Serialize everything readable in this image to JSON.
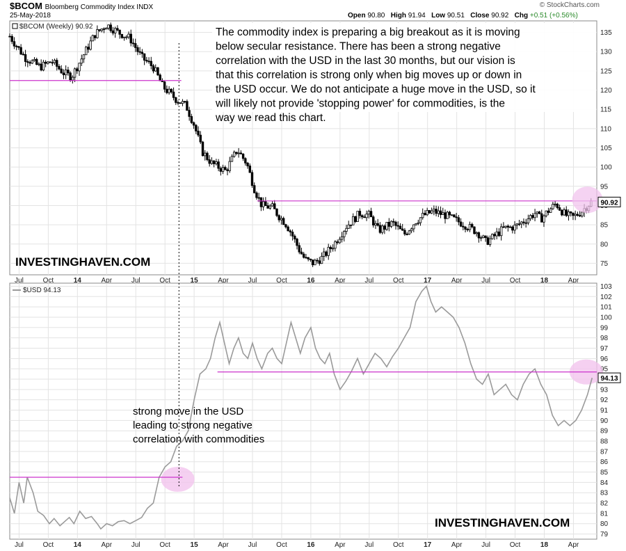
{
  "header": {
    "symbol": "$BCOM",
    "name": "Bloomberg Commodity Index INDX",
    "date": "25-May-2018",
    "open_label": "Open",
    "open": "90.80",
    "high_label": "High",
    "high": "91.94",
    "low_label": "Low",
    "low": "90.51",
    "close_label": "Close",
    "close": "90.92",
    "chg_label": "Chg",
    "chg": "+0.51 (+0.56%)",
    "brand": "© StockCharts.com"
  },
  "annotations": {
    "top_note": "The commodity index is preparing a big breakout as it is moving below secular resistance. There has been a strong negative correlation with the USD in the last 30 months, but our vision is that this correlation is strong only when big moves up or down in the USD occur. We do not anticipate a huge move in the USD, so it will likely not provide 'stopping power' for commodities, is the way we read this chart.",
    "bottom_note": "strong move in the USD leading to strong negative correlation with commodities",
    "watermark_top": "INVESTINGHAVEN.COM",
    "watermark_bottom": "INVESTINGHAVEN.COM"
  },
  "colors": {
    "resistance": "#cc33cc",
    "highlight": "#f2c4ee",
    "candle": "#000000",
    "usd_line": "#9a9a9a",
    "grid": "#e3e3e3"
  },
  "chart_data": [
    {
      "type": "candlestick",
      "legend": "$BCOM (Weekly) 90.92",
      "last_value_label": "90.92",
      "ylim": [
        72,
        138
      ],
      "yticks": [
        75,
        80,
        85,
        90,
        95,
        100,
        105,
        110,
        115,
        120,
        125,
        130,
        135
      ],
      "xlim": [
        2013.42,
        2018.45
      ],
      "xtick_labels": [
        {
          "label": "Jul",
          "t": 2013.5
        },
        {
          "label": "Oct",
          "t": 2013.75
        },
        {
          "label": "14",
          "t": 2014.0
        },
        {
          "label": "Apr",
          "t": 2014.25
        },
        {
          "label": "Jul",
          "t": 2014.5
        },
        {
          "label": "Oct",
          "t": 2014.75
        },
        {
          "label": "15",
          "t": 2015.0
        },
        {
          "label": "Apr",
          "t": 2015.25
        },
        {
          "label": "Jul",
          "t": 2015.5
        },
        {
          "label": "Oct",
          "t": 2015.75
        },
        {
          "label": "16",
          "t": 2016.0
        },
        {
          "label": "Apr",
          "t": 2016.25
        },
        {
          "label": "Jul",
          "t": 2016.5
        },
        {
          "label": "Oct",
          "t": 2016.75
        },
        {
          "label": "17",
          "t": 2017.0
        },
        {
          "label": "Apr",
          "t": 2017.25
        },
        {
          "label": "Jul",
          "t": 2017.5
        },
        {
          "label": "Oct",
          "t": 2017.75
        },
        {
          "label": "18",
          "t": 2018.0
        },
        {
          "label": "Apr",
          "t": 2018.25
        }
      ],
      "resistance_lines": [
        {
          "t_from": 2013.42,
          "t_to": 2014.89,
          "y": 122.5
        },
        {
          "t_from": 2015.54,
          "t_to": 2018.45,
          "y": 91.2
        }
      ],
      "highlight": {
        "t": 2018.37,
        "y": 91.5
      },
      "series_anchors": [
        [
          2013.42,
          134.0
        ],
        [
          2013.55,
          128.5
        ],
        [
          2013.68,
          126.0
        ],
        [
          2013.78,
          127.5
        ],
        [
          2013.88,
          124.5
        ],
        [
          2013.95,
          123.5
        ],
        [
          2014.05,
          129.0
        ],
        [
          2014.15,
          134.5
        ],
        [
          2014.25,
          137.0
        ],
        [
          2014.35,
          135.0
        ],
        [
          2014.45,
          133.5
        ],
        [
          2014.55,
          128.5
        ],
        [
          2014.65,
          126.0
        ],
        [
          2014.73,
          121.0
        ],
        [
          2014.78,
          119.5
        ],
        [
          2014.85,
          117.5
        ],
        [
          2014.93,
          116.0
        ],
        [
          2015.0,
          111.0
        ],
        [
          2015.07,
          104.0
        ],
        [
          2015.15,
          101.0
        ],
        [
          2015.27,
          99.0
        ],
        [
          2015.37,
          104.5
        ],
        [
          2015.45,
          101.0
        ],
        [
          2015.52,
          94.0
        ],
        [
          2015.58,
          90.0
        ],
        [
          2015.67,
          89.5
        ],
        [
          2015.72,
          87.5
        ],
        [
          2015.78,
          85.5
        ],
        [
          2015.83,
          83.0
        ],
        [
          2015.9,
          78.5
        ],
        [
          2015.95,
          76.0
        ],
        [
          2016.02,
          75.0
        ],
        [
          2016.1,
          76.5
        ],
        [
          2016.2,
          80.0
        ],
        [
          2016.3,
          84.5
        ],
        [
          2016.42,
          88.0
        ],
        [
          2016.5,
          87.5
        ],
        [
          2016.58,
          83.5
        ],
        [
          2016.7,
          85.5
        ],
        [
          2016.8,
          82.5
        ],
        [
          2016.9,
          86.0
        ],
        [
          2016.97,
          87.5
        ],
        [
          2017.05,
          88.5
        ],
        [
          2017.15,
          87.5
        ],
        [
          2017.22,
          86.5
        ],
        [
          2017.32,
          85.0
        ],
        [
          2017.43,
          83.0
        ],
        [
          2017.5,
          80.5
        ],
        [
          2017.55,
          81.5
        ],
        [
          2017.65,
          84.0
        ],
        [
          2017.75,
          84.5
        ],
        [
          2017.85,
          86.5
        ],
        [
          2017.92,
          88.0
        ],
        [
          2017.97,
          86.5
        ],
        [
          2018.03,
          88.5
        ],
        [
          2018.1,
          90.5
        ],
        [
          2018.18,
          87.5
        ],
        [
          2018.25,
          87.0
        ],
        [
          2018.32,
          88.5
        ],
        [
          2018.4,
          90.9
        ]
      ]
    },
    {
      "type": "line",
      "legend": "$USD 94.13",
      "last_value_label": "94.13",
      "ylim": [
        78.5,
        103.3
      ],
      "yticks": [
        79,
        80,
        81,
        82,
        83,
        84,
        85,
        86,
        87,
        88,
        89,
        90,
        91,
        92,
        93,
        94,
        95,
        96,
        97,
        98,
        99,
        100,
        101,
        102,
        103
      ],
      "xlim": [
        2013.42,
        2018.45
      ],
      "xtick_labels": [
        {
          "label": "Jul",
          "t": 2013.5
        },
        {
          "label": "Oct",
          "t": 2013.75
        },
        {
          "label": "14",
          "t": 2014.0
        },
        {
          "label": "Apr",
          "t": 2014.25
        },
        {
          "label": "Jul",
          "t": 2014.5
        },
        {
          "label": "Oct",
          "t": 2014.75
        },
        {
          "label": "15",
          "t": 2015.0
        },
        {
          "label": "Apr",
          "t": 2015.25
        },
        {
          "label": "Jul",
          "t": 2015.5
        },
        {
          "label": "Oct",
          "t": 2015.75
        },
        {
          "label": "16",
          "t": 2016.0
        },
        {
          "label": "Apr",
          "t": 2016.25
        },
        {
          "label": "Jul",
          "t": 2016.5
        },
        {
          "label": "Oct",
          "t": 2016.75
        },
        {
          "label": "17",
          "t": 2017.0
        },
        {
          "label": "Apr",
          "t": 2017.25
        },
        {
          "label": "Jul",
          "t": 2017.5
        },
        {
          "label": "Oct",
          "t": 2017.75
        },
        {
          "label": "18",
          "t": 2018.0
        },
        {
          "label": "Apr",
          "t": 2018.25
        }
      ],
      "resistance_lines": [
        {
          "t_from": 2013.42,
          "t_to": 2014.9,
          "y": 84.5
        },
        {
          "t_from": 2015.2,
          "t_to": 2018.45,
          "y": 94.7
        }
      ],
      "highlights": [
        {
          "t": 2014.86,
          "y": 84.3
        },
        {
          "t": 2018.36,
          "y": 94.7
        }
      ],
      "x": [
        2013.42,
        2013.46,
        2013.5,
        2013.54,
        2013.57,
        2013.62,
        2013.66,
        2013.71,
        2013.76,
        2013.8,
        2013.85,
        2013.9,
        2013.93,
        2013.97,
        2014.02,
        2014.07,
        2014.12,
        2014.17,
        2014.2,
        2014.25,
        2014.3,
        2014.35,
        2014.4,
        2014.45,
        2014.5,
        2014.55,
        2014.6,
        2014.65,
        2014.7,
        2014.75,
        2014.8,
        2014.85,
        2014.9,
        2014.95,
        2015.0,
        2015.05,
        2015.1,
        2015.14,
        2015.18,
        2015.22,
        2015.26,
        2015.3,
        2015.34,
        2015.38,
        2015.42,
        2015.46,
        2015.5,
        2015.54,
        2015.58,
        2015.63,
        2015.67,
        2015.71,
        2015.75,
        2015.79,
        2015.83,
        2015.87,
        2015.91,
        2015.95,
        2016.0,
        2016.04,
        2016.08,
        2016.12,
        2016.16,
        2016.2,
        2016.25,
        2016.3,
        2016.35,
        2016.4,
        2016.45,
        2016.5,
        2016.55,
        2016.6,
        2016.65,
        2016.7,
        2016.75,
        2016.8,
        2016.85,
        2016.9,
        2016.95,
        2016.99,
        2017.03,
        2017.07,
        2017.12,
        2017.17,
        2017.22,
        2017.27,
        2017.32,
        2017.37,
        2017.42,
        2017.47,
        2017.52,
        2017.57,
        2017.62,
        2017.67,
        2017.72,
        2017.77,
        2017.82,
        2017.87,
        2017.92,
        2017.97,
        2018.02,
        2018.07,
        2018.12,
        2018.17,
        2018.22,
        2018.27,
        2018.32,
        2018.37,
        2018.41
      ],
      "values": [
        82.5,
        81.0,
        84.0,
        82.0,
        84.5,
        83.0,
        81.2,
        80.8,
        80.0,
        80.5,
        79.8,
        80.3,
        80.6,
        80.0,
        81.2,
        80.5,
        80.7,
        80.0,
        79.5,
        80.0,
        79.8,
        80.2,
        80.3,
        80.0,
        80.3,
        80.6,
        81.5,
        82.0,
        84.5,
        85.5,
        86.0,
        87.5,
        88.0,
        89.0,
        92.0,
        94.5,
        95.0,
        96.0,
        98.0,
        99.5,
        97.5,
        95.5,
        97.0,
        98.0,
        96.5,
        96.0,
        97.5,
        96.0,
        95.0,
        96.5,
        97.0,
        96.0,
        95.5,
        97.5,
        99.5,
        98.0,
        96.5,
        98.0,
        99.0,
        97.0,
        96.0,
        95.5,
        96.5,
        94.5,
        93.0,
        93.8,
        94.8,
        96.0,
        94.5,
        95.5,
        96.5,
        96.0,
        95.2,
        96.2,
        97.0,
        98.0,
        99.0,
        101.5,
        102.5,
        103.0,
        101.5,
        100.5,
        101.0,
        100.5,
        100.0,
        99.0,
        97.5,
        95.5,
        94.0,
        93.5,
        94.5,
        92.5,
        93.0,
        93.5,
        92.5,
        92.0,
        93.5,
        94.5,
        95.0,
        93.5,
        92.5,
        90.5,
        89.5,
        90.0,
        89.5,
        90.0,
        91.0,
        92.5,
        94.13
      ]
    }
  ]
}
